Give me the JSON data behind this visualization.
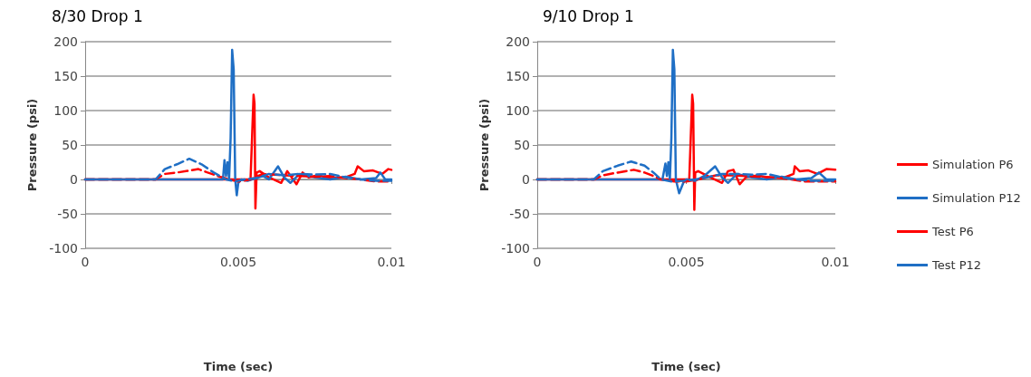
{
  "chart_data": [
    {
      "type": "line",
      "title": "8/30 Drop 1",
      "xlabel": "Time (sec)",
      "ylabel": "Pressure (psi)",
      "xlim": [
        0,
        0.01
      ],
      "xticks": [
        0,
        0.005,
        0.01
      ],
      "ylim": [
        -100,
        200
      ],
      "yticks": [
        -100,
        -50,
        0,
        50,
        100,
        150,
        200
      ],
      "grid": "y",
      "legend": false,
      "marker": "none",
      "series": [
        {
          "color": "#ff0000",
          "line_style": "solid",
          "x": [
            0,
            0.0054,
            0.00545,
            0.0055,
            0.00553,
            0.00556,
            0.0056,
            0.0057,
            0.006,
            0.0064,
            0.0066,
            0.0069,
            0.0071,
            0.0073,
            0.0076,
            0.008,
            0.0085,
            0.0088,
            0.0089,
            0.0091,
            0.0094,
            0.0097,
            0.0099,
            0.01
          ],
          "values": [
            0,
            0,
            60,
            123,
            110,
            -42,
            10,
            12,
            3,
            -5,
            12,
            -7,
            10,
            3,
            6,
            2,
            3,
            8,
            19,
            12,
            13,
            8,
            15,
            14
          ]
        },
        {
          "color": "#1f6fc5",
          "line_style": "solid",
          "x": [
            0,
            0.0045,
            0.00455,
            0.0046,
            0.00465,
            0.0047,
            0.00475,
            0.0048,
            0.00485,
            0.0049,
            0.00495,
            0.005,
            0.0051,
            0.0053,
            0.0058,
            0.006,
            0.0063,
            0.0065,
            0.0067,
            0.007,
            0.0075,
            0.008,
            0.0085,
            0.009,
            0.0095,
            0.00964,
            0.0098,
            0.01
          ],
          "values": [
            0,
            0,
            28,
            5,
            25,
            0,
            60,
            188,
            160,
            0,
            -23,
            -5,
            0,
            -2,
            5,
            0,
            19,
            3,
            -5,
            8,
            3,
            0,
            4,
            0,
            2,
            10,
            0,
            0
          ]
        },
        {
          "color": "#ff0000",
          "line_style": "dashed",
          "x": [
            0,
            0.0023,
            0.0026,
            0.003,
            0.0037,
            0.004,
            0.0044,
            0.0047,
            0.005,
            0.0054,
            0.0058,
            0.0065,
            0.007,
            0.0075,
            0.008,
            0.0085,
            0.009,
            0.0095,
            0.01
          ],
          "values": [
            0,
            0,
            8,
            10,
            15,
            10,
            4,
            0,
            -3,
            0,
            8,
            6,
            5,
            4,
            5,
            2,
            0,
            -3,
            -3
          ]
        },
        {
          "color": "#1f6fc5",
          "line_style": "dashed",
          "x": [
            0,
            0.0023,
            0.0026,
            0.003,
            0.0034,
            0.0038,
            0.0042,
            0.0046,
            0.0049,
            0.0052,
            0.0056,
            0.006,
            0.0065,
            0.007,
            0.0075,
            0.008,
            0.0085,
            0.009,
            0.0095,
            0.01
          ],
          "values": [
            0,
            0,
            15,
            22,
            30,
            22,
            10,
            0,
            -3,
            0,
            2,
            8,
            6,
            8,
            7,
            8,
            3,
            0,
            -2,
            -2
          ]
        }
      ]
    },
    {
      "type": "line",
      "title": "9/10 Drop 1",
      "xlabel": "Time (sec)",
      "ylabel": "Pressure (psi)",
      "xlim": [
        0,
        0.01
      ],
      "xticks": [
        0,
        0.005,
        0.01
      ],
      "ylim": [
        -100,
        200
      ],
      "yticks": [
        -100,
        -50,
        0,
        50,
        100,
        150,
        200
      ],
      "grid": "y",
      "legend": "right",
      "marker": "none",
      "series": [
        {
          "name": "Simulation P6",
          "color": "#ff0000",
          "line_style": "solid",
          "x": [
            0,
            0.0051,
            0.00515,
            0.0052,
            0.00523,
            0.00527,
            0.0053,
            0.0054,
            0.0058,
            0.0062,
            0.0064,
            0.00658,
            0.00679,
            0.007,
            0.0074,
            0.0078,
            0.0083,
            0.0086,
            0.00864,
            0.0088,
            0.0091,
            0.0094,
            0.0097,
            0.01
          ],
          "values": [
            0,
            0,
            60,
            123,
            110,
            -44,
            10,
            12,
            3,
            -5,
            12,
            14,
            -7,
            3,
            6,
            2,
            3,
            8,
            19,
            12,
            13,
            8,
            15,
            14
          ]
        },
        {
          "name": "Simulation P12",
          "color": "#1f6fc5",
          "line_style": "solid",
          "x": [
            0,
            0.0042,
            0.0043,
            0.00435,
            0.0044,
            0.00445,
            0.0045,
            0.00455,
            0.0046,
            0.00465,
            0.00476,
            0.0049,
            0.005,
            0.0053,
            0.0056,
            0.00597,
            0.0062,
            0.0064,
            0.0067,
            0.0072,
            0.0077,
            0.0082,
            0.0087,
            0.0092,
            0.00945,
            0.0097,
            0.01
          ],
          "values": [
            0,
            0,
            23,
            5,
            25,
            0,
            60,
            188,
            160,
            0,
            -20,
            -5,
            0,
            -2,
            5,
            19,
            3,
            -5,
            8,
            3,
            0,
            4,
            0,
            2,
            10,
            0,
            0
          ]
        },
        {
          "name": "Test P6",
          "color": "#ff0000",
          "line_style": "dashed",
          "x": [
            0,
            0.0019,
            0.0022,
            0.0027,
            0.00324,
            0.0036,
            0.0039,
            0.00415,
            0.0046,
            0.005,
            0.0054,
            0.006,
            0.0065,
            0.007,
            0.0075,
            0.008,
            0.0085,
            0.009,
            0.0095,
            0.01
          ],
          "values": [
            0,
            0,
            6,
            10,
            14,
            10,
            5,
            0,
            -3,
            -3,
            0,
            6,
            6,
            5,
            4,
            3,
            0,
            -3,
            -3,
            -3
          ]
        },
        {
          "name": "Test P12",
          "color": "#1f6fc5",
          "line_style": "dashed",
          "x": [
            0,
            0.0019,
            0.0022,
            0.0027,
            0.00315,
            0.0036,
            0.0039,
            0.00415,
            0.0045,
            0.0049,
            0.0053,
            0.0057,
            0.0062,
            0.0067,
            0.0072,
            0.0077,
            0.0082,
            0.0087,
            0.0092,
            0.0097,
            0.01
          ],
          "values": [
            0,
            0,
            12,
            20,
            26,
            20,
            10,
            0,
            -3,
            -2,
            0,
            3,
            8,
            8,
            7,
            8,
            3,
            0,
            -2,
            -2,
            -2
          ]
        }
      ]
    }
  ]
}
